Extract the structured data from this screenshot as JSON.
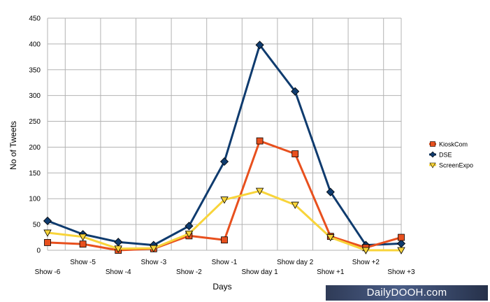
{
  "chart_data": {
    "type": "line",
    "title": "",
    "xlabel": "Days",
    "ylabel": "No of Tweets",
    "ylim": [
      0,
      450
    ],
    "yticks": [
      0,
      50,
      100,
      150,
      200,
      250,
      300,
      350,
      400,
      450
    ],
    "grid": "horizontal and vertical gridlines",
    "legend_position": "right",
    "categories": [
      "Show -6",
      "Show -5",
      "Show -4",
      "Show -3",
      "Show -2",
      "Show -1",
      "Show  day 1",
      "Show  day 2",
      "Show +1",
      "Show +2",
      "Show +3"
    ],
    "series": [
      {
        "name": "KioskCom",
        "color": "#e8501e",
        "marker": "square",
        "values": [
          15,
          12,
          0,
          3,
          28,
          20,
          212,
          187,
          27,
          5,
          25
        ]
      },
      {
        "name": "DSE",
        "color": "#0f3b6e",
        "marker": "diamond",
        "values": [
          57,
          31,
          16,
          10,
          47,
          172,
          398,
          308,
          113,
          10,
          13
        ]
      },
      {
        "name": "ScreenExpo",
        "color": "#f8d43a",
        "marker": "triangle-down",
        "values": [
          34,
          26,
          3,
          4,
          32,
          98,
          115,
          88,
          25,
          0,
          0
        ]
      }
    ]
  },
  "watermark": {
    "text": "DailyDOOH.com"
  }
}
